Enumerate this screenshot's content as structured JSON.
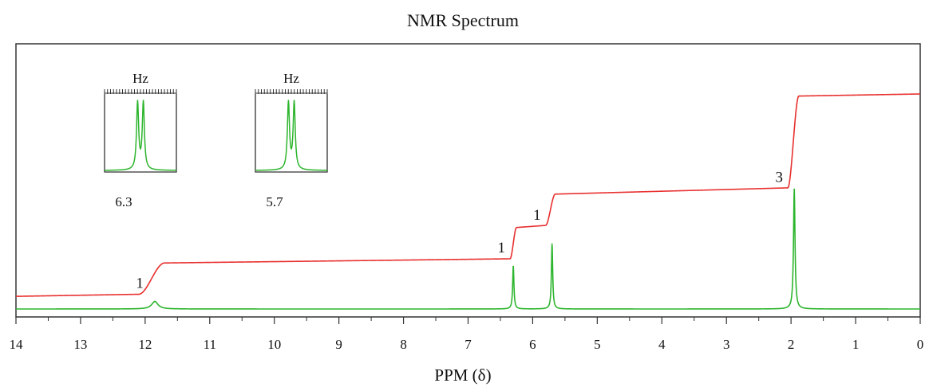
{
  "chart_data": {
    "type": "line",
    "title": "NMR Spectrum",
    "xlabel": "PPM (δ)",
    "ylabel": "",
    "xlim": [
      14,
      0
    ],
    "x_reversed": true,
    "grid": false,
    "x_ticks": [
      14,
      13,
      12,
      11,
      10,
      9,
      8,
      7,
      6,
      5,
      4,
      3,
      2,
      1,
      0
    ],
    "peaks": [
      {
        "ppm": 11.85,
        "height": 0.03,
        "width": 0.06
      },
      {
        "ppm": 6.3,
        "height": 0.17,
        "width": 0.012
      },
      {
        "ppm": 5.7,
        "height": 0.26,
        "width": 0.012
      },
      {
        "ppm": 1.95,
        "height": 0.48,
        "width": 0.014
      }
    ],
    "series": [
      {
        "color": "#e8302f",
        "points": [
          [
            14,
            0.03
          ],
          [
            12.1,
            0.04
          ],
          [
            11.7,
            0.19
          ],
          [
            6.35,
            0.21
          ],
          [
            6.25,
            0.36
          ],
          [
            5.8,
            0.37
          ],
          [
            5.65,
            0.52
          ],
          [
            2.05,
            0.55
          ],
          [
            1.88,
            0.99
          ],
          [
            0,
            1.0
          ]
        ]
      },
      {
        "color": "#2db52d",
        "points": [
          [
            14,
            0.0
          ],
          [
            0,
            0.0
          ]
        ]
      }
    ],
    "integrals": [
      {
        "label": "1",
        "ppm": 12.0
      },
      {
        "label": "1",
        "ppm": 6.4
      },
      {
        "label": "1",
        "ppm": 5.85
      },
      {
        "label": "3",
        "ppm": 2.1
      }
    ],
    "insets": [
      {
        "unit_label": "Hz",
        "ppm_label": "6.3"
      },
      {
        "unit_label": "Hz",
        "ppm_label": "5.7"
      }
    ]
  },
  "colors": {
    "integral": "#e8302f",
    "spectrum": "#2db52d",
    "axis": "#333333"
  }
}
